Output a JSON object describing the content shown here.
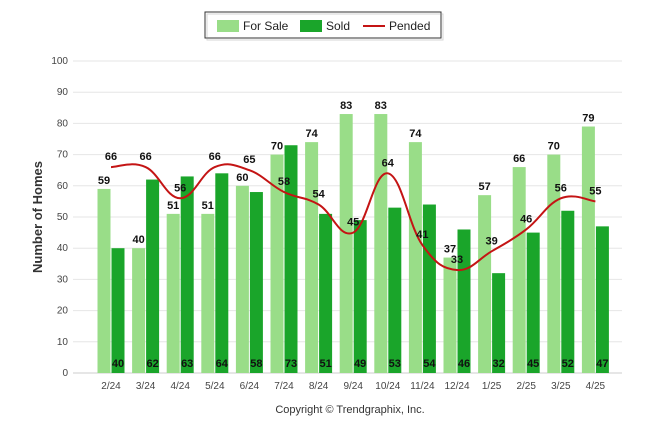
{
  "chart_data": {
    "type": "bar",
    "categories": [
      "2/24",
      "3/24",
      "4/24",
      "5/24",
      "6/24",
      "7/24",
      "8/24",
      "9/24",
      "10/24",
      "11/24",
      "12/24",
      "1/25",
      "2/25",
      "3/25",
      "4/25"
    ],
    "series": [
      {
        "name": "For Sale",
        "kind": "bar",
        "color": "#99dd88",
        "values": [
          59,
          40,
          51,
          51,
          60,
          70,
          74,
          83,
          83,
          74,
          37,
          57,
          66,
          70,
          79
        ]
      },
      {
        "name": "Sold",
        "kind": "bar",
        "color": "#1aa52a",
        "values": [
          40,
          62,
          63,
          64,
          58,
          73,
          51,
          49,
          53,
          54,
          46,
          32,
          45,
          52,
          47
        ]
      },
      {
        "name": "Pended",
        "kind": "line",
        "color": "#c41414",
        "values": [
          66,
          66,
          56,
          66,
          65,
          58,
          54,
          45,
          64,
          41,
          33,
          39,
          46,
          56,
          55
        ]
      }
    ],
    "ylabel": "Number of Homes",
    "xlabel": "",
    "ylim": [
      0,
      100
    ],
    "yticks": [
      "0",
      "10",
      "20",
      "30",
      "40",
      "50",
      "60",
      "70",
      "80",
      "90",
      "100"
    ],
    "grid": true,
    "legend_position": "top-center"
  },
  "footer": {
    "copyright": "Copyright © Trendgraphix, Inc."
  }
}
